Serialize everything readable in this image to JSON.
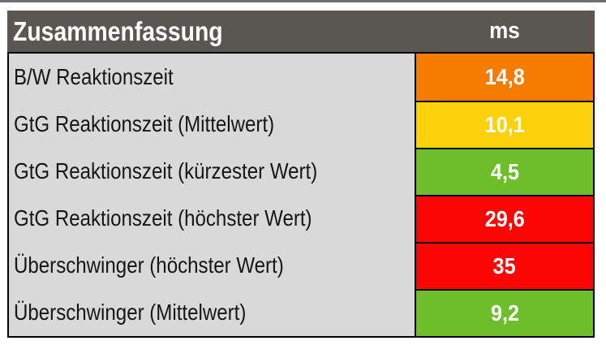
{
  "header": {
    "title": "Zusammenfassung",
    "unit_label": "ms"
  },
  "rows": [
    {
      "label": "B/W Reaktionszeit",
      "value": "14,8",
      "status": "orange",
      "color": "#f57c00"
    },
    {
      "label": "GtG Reaktionszeit (Mittelwert)",
      "value": "10,1",
      "status": "yellow",
      "color": "#fbd109"
    },
    {
      "label": "GtG Reaktionszeit (kürzester Wert)",
      "value": "4,5",
      "status": "green",
      "color": "#6ebe2c"
    },
    {
      "label": "GtG Reaktionszeit (höchster Wert)",
      "value": "29,6",
      "status": "red",
      "color": "#fb0505"
    },
    {
      "label": "Überschwinger (höchster Wert)",
      "value": "35",
      "status": "red",
      "color": "#fb0505"
    },
    {
      "label": "Überschwinger (Mittelwert)",
      "value": "9,2",
      "status": "green",
      "color": "#6ebe2c"
    }
  ],
  "colors": {
    "header_bg": "#5a5651",
    "header_text": "#ffffff",
    "label_bg": "#d9d9d9",
    "label_text": "#161616",
    "value_text": "#ffffff",
    "border": "#000000",
    "top_strip": "#6e6e6e",
    "orange": "#f57c00",
    "yellow": "#fbd109",
    "green": "#6ebe2c",
    "red": "#fb0505"
  },
  "chart_data": {
    "type": "table",
    "title": "Zusammenfassung",
    "columns": [
      "Zusammenfassung",
      "ms"
    ],
    "unit": "ms",
    "rows": [
      {
        "metric": "B/W Reaktionszeit",
        "ms": 14.8,
        "rating_color": "orange"
      },
      {
        "metric": "GtG Reaktionszeit (Mittelwert)",
        "ms": 10.1,
        "rating_color": "yellow"
      },
      {
        "metric": "GtG Reaktionszeit (kürzester Wert)",
        "ms": 4.5,
        "rating_color": "green"
      },
      {
        "metric": "GtG Reaktionszeit (höchster Wert)",
        "ms": 29.6,
        "rating_color": "red"
      },
      {
        "metric": "Überschwinger (höchster Wert)",
        "ms": 35,
        "rating_color": "red"
      },
      {
        "metric": "Überschwinger (Mittelwert)",
        "ms": 9.2,
        "rating_color": "green"
      }
    ]
  }
}
